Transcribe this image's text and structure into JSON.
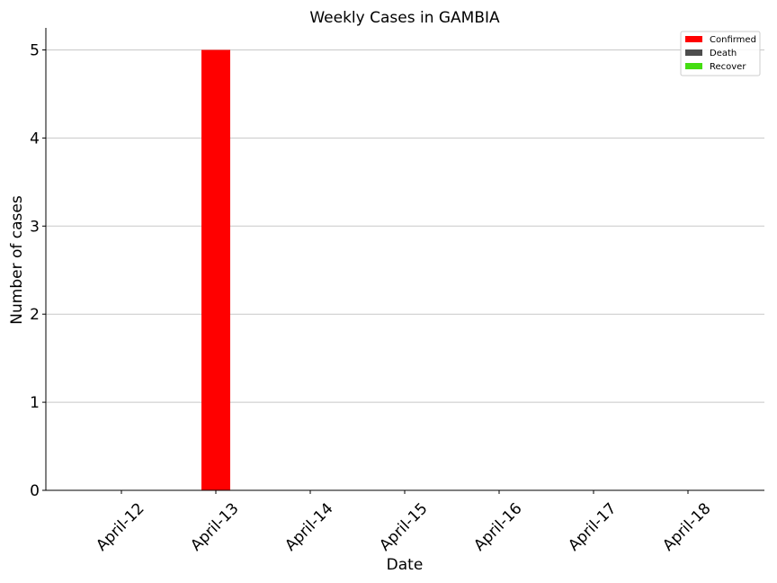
{
  "chart_data": {
    "type": "bar",
    "title": "Weekly Cases in GAMBIA",
    "xlabel": "Date",
    "ylabel": "Number of cases",
    "categories": [
      "April-12",
      "April-13",
      "April-14",
      "April-15",
      "April-16",
      "April-17",
      "April-18"
    ],
    "series": [
      {
        "name": "Confirmed",
        "color": "#ff0000",
        "values": [
          0,
          5,
          0,
          0,
          0,
          0,
          0
        ]
      },
      {
        "name": "Death",
        "color": "#4d4d4d",
        "values": [
          0,
          0,
          0,
          0,
          0,
          0,
          0
        ]
      },
      {
        "name": "Recover",
        "color": "#44dd11",
        "values": [
          0,
          0,
          0,
          0,
          0,
          0,
          0
        ]
      }
    ],
    "ylim": [
      0,
      5.25
    ],
    "yticks": [
      0,
      1,
      2,
      3,
      4,
      5
    ],
    "grid": "horizontal",
    "legend": "top-right"
  }
}
